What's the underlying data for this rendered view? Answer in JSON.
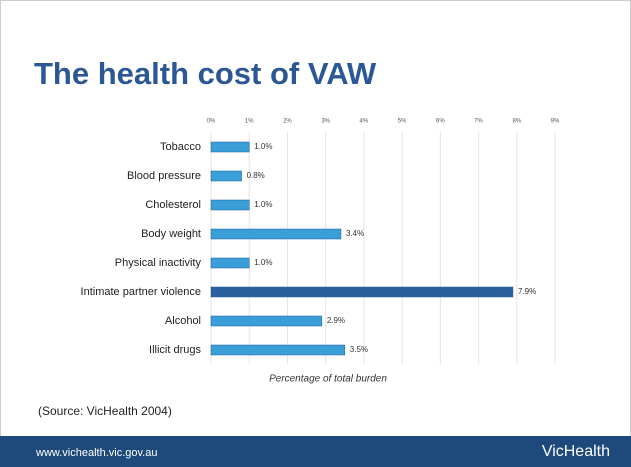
{
  "chart_data": {
    "type": "hbar",
    "title": "The health cost of VAW",
    "categories": [
      "Tobacco",
      "Blood pressure",
      "Cholesterol",
      "Body weight",
      "Physical inactivity",
      "Intimate partner violence",
      "Alcohol",
      "Illicit drugs"
    ],
    "values": [
      1.0,
      0.8,
      1.0,
      3.4,
      1.0,
      7.9,
      2.9,
      3.5
    ],
    "value_labels": [
      "1.0%",
      "0.8%",
      "1.0%",
      "3.4%",
      "1.0%",
      "7.9%",
      "2.9%",
      "3.5%"
    ],
    "colors": [
      "#3a9fd8",
      "#3a9fd8",
      "#3a9fd8",
      "#3a9fd8",
      "#3a9fd8",
      "#2a5f9e",
      "#3a9fd8",
      "#3a9fd8"
    ],
    "xlim": [
      0,
      9
    ],
    "xticks": [
      {
        "value": 0,
        "label": "0%"
      },
      {
        "value": 1,
        "label": "1%"
      },
      {
        "value": 2,
        "label": "2%"
      },
      {
        "value": 3,
        "label": "3%"
      },
      {
        "value": 4,
        "label": "4%"
      },
      {
        "value": 5,
        "label": "5%"
      },
      {
        "value": 6,
        "label": "6%"
      },
      {
        "value": 7,
        "label": "7%"
      },
      {
        "value": 8,
        "label": "8%"
      },
      {
        "value": 9,
        "label": "9%"
      }
    ],
    "x_label": "Percentage of total burden",
    "grid": true
  },
  "source": "(Source: VicHealth 2004)",
  "footer": {
    "url": "www.vichealth.vic.gov.au",
    "logo": "VicHealth"
  }
}
